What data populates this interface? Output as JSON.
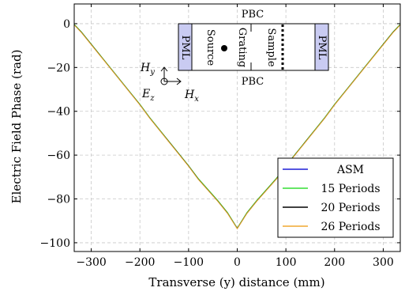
{
  "chart_data": {
    "type": "line",
    "xlabel": "Transverse (y) distance (mm)",
    "ylabel": "Electric Field Phase (rad)",
    "xlim": [
      -335,
      335
    ],
    "ylim": [
      -104,
      9
    ],
    "xticks": [
      -300,
      -200,
      -100,
      0,
      100,
      200,
      300
    ],
    "yticks": [
      0,
      -20,
      -40,
      -60,
      -80,
      -100
    ],
    "xtick_labels": [
      "−300",
      "−200",
      "−100",
      "0",
      "100",
      "200",
      "300"
    ],
    "ytick_labels": [
      "0",
      "−20",
      "−40",
      "−60",
      "−80",
      "−100"
    ],
    "grid": true,
    "grid_style": "dashed",
    "legend_position": "bottom-right",
    "x": [
      -335,
      -320,
      -300,
      -280,
      -260,
      -240,
      -220,
      -200,
      -180,
      -160,
      -140,
      -120,
      -100,
      -80,
      -60,
      -40,
      -20,
      0,
      20,
      40,
      60,
      80,
      100,
      120,
      140,
      160,
      180,
      200,
      220,
      240,
      260,
      280,
      300,
      320,
      335
    ],
    "series": [
      {
        "name": "ASM",
        "color": "#1f1fd6",
        "values": [
          -0.5,
          -4,
          -9.5,
          -15,
          -20.5,
          -26,
          -31.5,
          -37,
          -43,
          -48.5,
          -54,
          -59.5,
          -65,
          -71,
          -76,
          -81,
          -86.5,
          -93.5,
          -86.5,
          -81,
          -76,
          -71,
          -65,
          -59.5,
          -54,
          -48.5,
          -43,
          -37,
          -31.5,
          -26,
          -20.5,
          -15,
          -9.5,
          -4,
          -0.5
        ]
      },
      {
        "name": "15 Periods",
        "color": "#33dd33",
        "values": [
          -0.3,
          -3.8,
          -9.3,
          -14.8,
          -20.3,
          -25.8,
          -31.3,
          -36.8,
          -42.8,
          -48.3,
          -53.8,
          -59.3,
          -64.8,
          -70.7,
          -75.7,
          -80.7,
          -86.2,
          -93.3,
          -86.2,
          -80.7,
          -75.7,
          -70.7,
          -64.8,
          -59.3,
          -53.8,
          -48.3,
          -42.8,
          -36.8,
          -31.3,
          -25.8,
          -20.3,
          -14.8,
          -9.3,
          -3.8,
          -0.3
        ]
      },
      {
        "name": "20 Periods",
        "color": "#000000",
        "values": [
          -0.5,
          -4,
          -9.5,
          -15,
          -20.5,
          -26,
          -31.5,
          -37,
          -43,
          -48.5,
          -54,
          -59.5,
          -65,
          -71,
          -76,
          -81,
          -86.5,
          -93.5,
          -86.5,
          -81,
          -76,
          -71,
          -65,
          -59.5,
          -54,
          -48.5,
          -43,
          -37,
          -31.5,
          -26,
          -20.5,
          -15,
          -9.5,
          -4,
          -0.5
        ]
      },
      {
        "name": "26 Periods",
        "color": "#f0a830",
        "values": [
          -0.6,
          -4.1,
          -9.6,
          -15.1,
          -20.6,
          -26.1,
          -31.6,
          -37.1,
          -43.1,
          -48.6,
          -54.1,
          -59.6,
          -65.1,
          -71.1,
          -76.1,
          -81.1,
          -86.6,
          -93.6,
          -86.6,
          -81.1,
          -76.1,
          -71.1,
          -65.1,
          -59.6,
          -54.1,
          -48.6,
          -43.1,
          -37.1,
          -31.6,
          -26.1,
          -20.6,
          -15.1,
          -9.6,
          -4.1,
          -0.6
        ]
      }
    ],
    "inset": {
      "pbc_top": "PBC",
      "pbc_bottom": "PBC",
      "pml_left": "PML",
      "pml_right": "PML",
      "source": "Source",
      "grating": "Grating",
      "sample": "Sample",
      "axis_hy": "H",
      "axis_hy_sub": "y",
      "axis_ez": "E",
      "axis_ez_sub": "z",
      "axis_hx": "H",
      "axis_hx_sub": "x",
      "pml_color": "#c9cbf2"
    }
  }
}
